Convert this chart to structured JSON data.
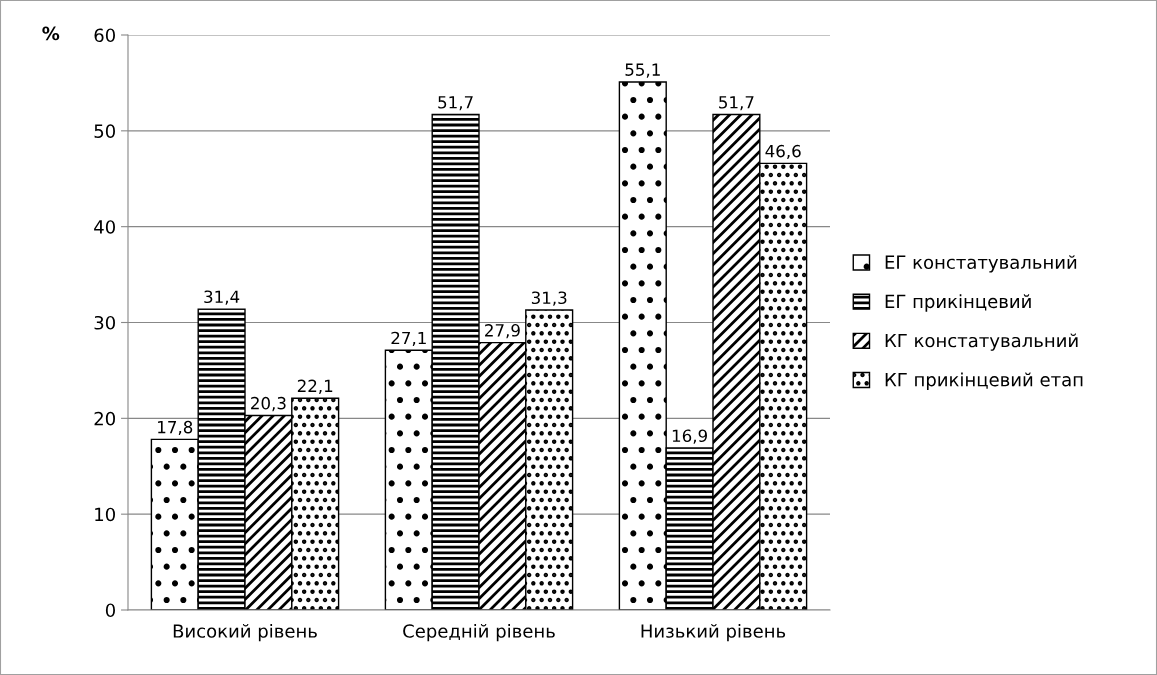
{
  "chart_data": {
    "type": "bar",
    "ylabel": "%",
    "categories": [
      "Високий рівень",
      "Середній рівень",
      "Низький рівень"
    ],
    "series": [
      {
        "name": "ЕГ констатувальний",
        "color": "#000000",
        "values": [
          17.8,
          27.1,
          55.1
        ],
        "value_labels": [
          "17,8",
          "27,1",
          "55,1"
        ]
      },
      {
        "name": "ЕГ прикінцевий",
        "color": "#000000",
        "values": [
          31.4,
          51.7,
          16.9
        ],
        "value_labels": [
          "31,4",
          "51,7",
          "16,9"
        ]
      },
      {
        "name": "КГ констатувальний",
        "color": "#000000",
        "values": [
          20.3,
          27.9,
          51.7
        ],
        "value_labels": [
          "20,3",
          "27,9",
          "51,7"
        ]
      },
      {
        "name": "КГ прикінцевий етап",
        "color": "#000000",
        "values": [
          22.1,
          31.3,
          46.6
        ],
        "value_labels": [
          "22,1",
          "31,3",
          "46,6"
        ]
      }
    ],
    "ylim": [
      0,
      60
    ],
    "yticks": [
      0,
      10,
      20,
      30,
      40,
      50,
      60
    ],
    "grid": "y",
    "legend": "right"
  }
}
